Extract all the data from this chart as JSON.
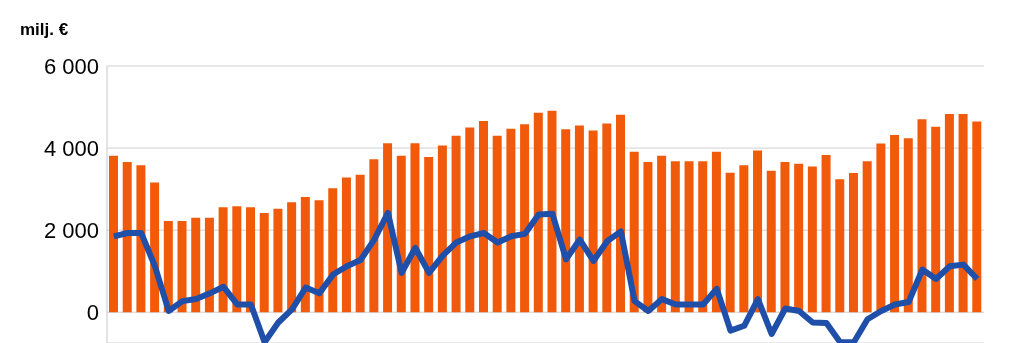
{
  "chart_data": {
    "type": "bar",
    "ylabel": "milj. €",
    "categories": [
      null,
      null,
      null,
      null,
      null,
      null,
      null,
      null,
      null,
      null,
      null,
      null,
      null,
      null,
      null,
      null,
      null,
      null,
      null,
      null,
      null,
      null,
      null,
      null,
      null,
      null,
      null,
      null,
      null,
      null,
      null,
      null,
      null,
      null,
      null,
      null,
      null,
      null,
      null,
      null,
      null,
      null,
      null,
      null,
      null,
      null,
      null,
      null,
      null,
      null,
      null,
      null,
      null,
      null,
      null,
      null,
      null,
      null,
      null,
      null,
      null,
      null,
      null,
      null
    ],
    "series": [
      {
        "color": "#f05a0a",
        "values": [
          3810,
          3660,
          3580,
          3160,
          2220,
          2220,
          2300,
          2300,
          2560,
          2580,
          2560,
          2420,
          2520,
          2680,
          2810,
          2730,
          3020,
          3280,
          3350,
          3730,
          4120,
          3810,
          4120,
          3780,
          4060,
          4300,
          4500,
          4660,
          4300,
          4470,
          4580,
          4860,
          4910,
          4460,
          4550,
          4430,
          4600,
          4810,
          3910,
          3660,
          3810,
          3680,
          3680,
          3680,
          3910,
          3400,
          3580,
          3940,
          3450,
          3660,
          3620,
          3550,
          3830,
          3240,
          3390,
          3680,
          4110,
          4320,
          4240,
          4700,
          4520,
          4830,
          4830,
          4650
        ]
      },
      {
        "type": "line",
        "color": "#1f4fa8",
        "values": [
          1850,
          1930,
          1930,
          1120,
          30,
          270,
          320,
          460,
          620,
          190,
          190,
          -730,
          -250,
          70,
          600,
          460,
          920,
          1120,
          1270,
          1770,
          2420,
          960,
          1570,
          960,
          1380,
          1700,
          1850,
          1930,
          1700,
          1850,
          1910,
          2380,
          2400,
          1290,
          1770,
          1250,
          1730,
          1970,
          270,
          30,
          320,
          190,
          190,
          190,
          570,
          -450,
          -330,
          320,
          -530,
          90,
          30,
          -250,
          -260,
          -730,
          -730,
          -170,
          30,
          190,
          250,
          1040,
          810,
          1120,
          1160,
          810
        ]
      }
    ],
    "ylim": [
      -750,
      6000
    ],
    "yticks": [
      {
        "value": 0,
        "label": "0"
      },
      {
        "value": 2000,
        "label": "2 000"
      },
      {
        "value": 4000,
        "label": "4 000"
      },
      {
        "value": 6000,
        "label": "6 000"
      }
    ],
    "grid": "y",
    "marker": "none",
    "line_style": "solid",
    "tick_labels": "y"
  }
}
